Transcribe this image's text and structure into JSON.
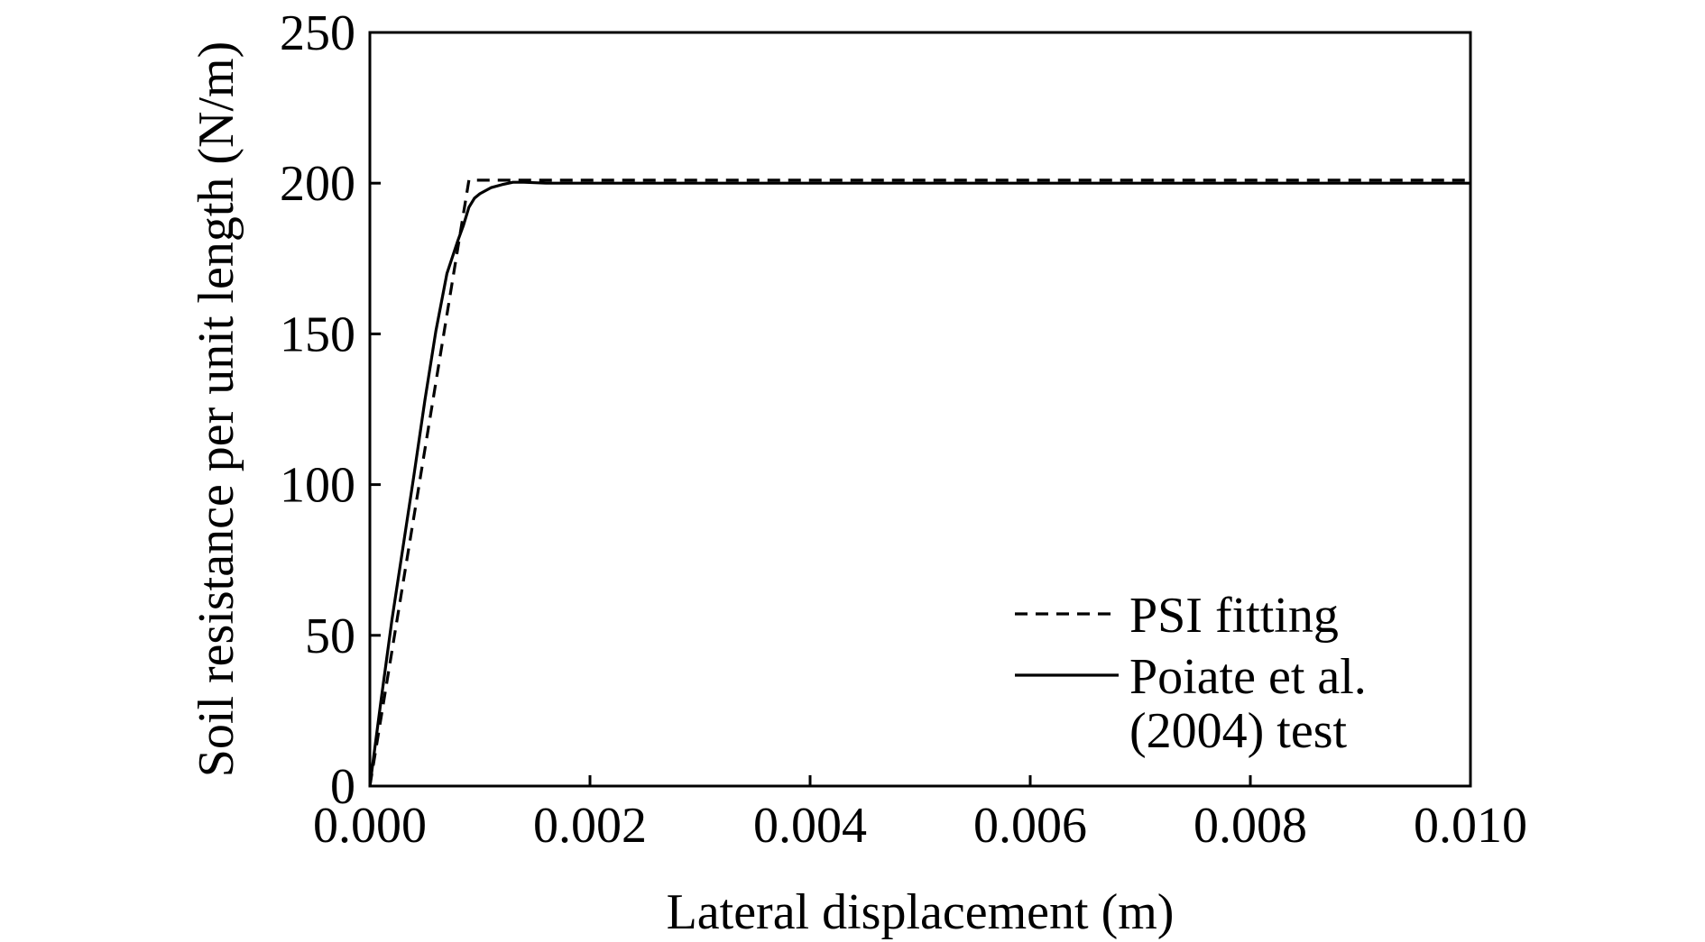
{
  "chart_data": {
    "type": "line",
    "title": "",
    "xlabel": "Lateral displacement (m)",
    "ylabel": "Soil resistance per unit length (N/m)",
    "xlim": [
      0,
      0.01
    ],
    "ylim": [
      0,
      250
    ],
    "xticks": [
      0,
      0.002,
      0.004,
      0.006,
      0.008,
      0.01
    ],
    "xtick_labels": [
      "0.000",
      "0.002",
      "0.004",
      "0.006",
      "0.008",
      "0.010"
    ],
    "yticks": [
      0,
      50,
      100,
      150,
      200,
      250
    ],
    "ytick_labels": [
      "0",
      "50",
      "100",
      "150",
      "200",
      "250"
    ],
    "grid": false,
    "legend_position": "bottom-right",
    "legend": [
      {
        "series": "psi",
        "lines": [
          "PSI fitting"
        ]
      },
      {
        "series": "test",
        "lines": [
          "Poiate et al.",
          "(2004) test"
        ]
      }
    ],
    "series": [
      {
        "id": "psi",
        "style": "dashed",
        "color": "#000000",
        "x": [
          0,
          0.0009,
          0.01
        ],
        "y": [
          0,
          201,
          201
        ]
      },
      {
        "id": "test",
        "style": "solid",
        "color": "#000000",
        "x": [
          0,
          0.0001,
          0.0002,
          0.0003,
          0.0004,
          0.0005,
          0.0006,
          0.0007,
          0.0008,
          0.00085,
          0.0009,
          0.00095,
          0.001,
          0.0011,
          0.0012,
          0.0013,
          0.0014,
          0.0016,
          0.002,
          0.004,
          0.006,
          0.008,
          0.01
        ],
        "y": [
          0,
          28,
          55,
          79,
          103,
          128,
          151,
          170,
          181,
          186,
          192,
          195,
          196.5,
          198.5,
          199.5,
          200.3,
          200.3,
          200,
          200,
          200,
          200,
          200,
          200
        ]
      }
    ]
  }
}
